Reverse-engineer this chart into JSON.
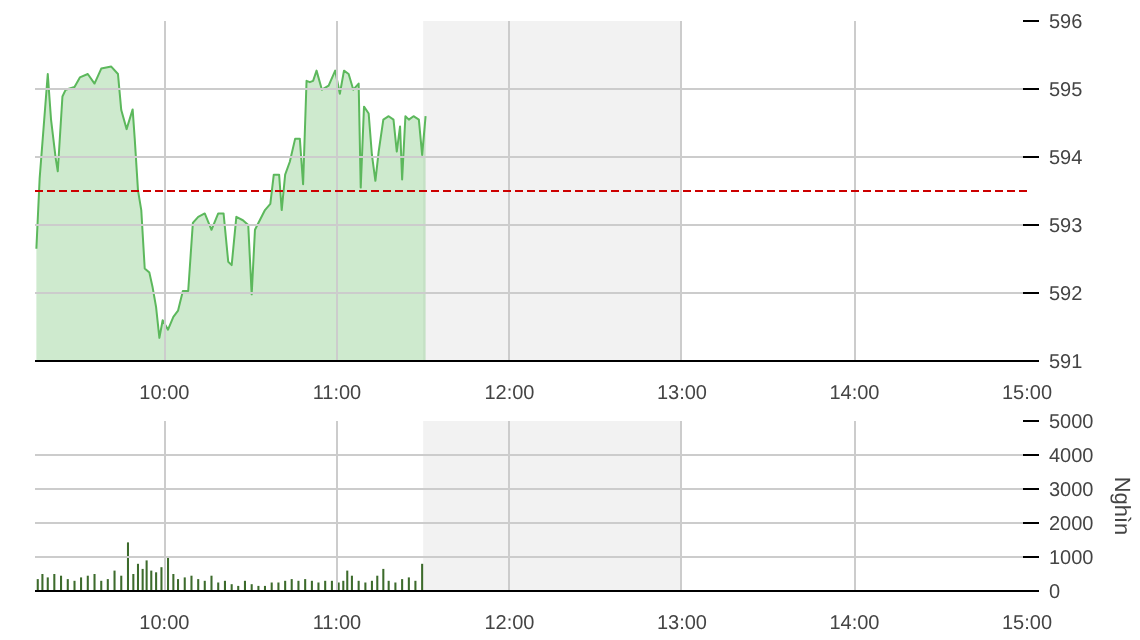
{
  "chart_data": [
    {
      "type": "area",
      "xlim": [
        9.25,
        15
      ],
      "ylim": [
        591,
        596
      ],
      "yticks": [
        591,
        592,
        593,
        594,
        595,
        596
      ],
      "xticks": [
        {
          "value": 10,
          "label": "10:00"
        },
        {
          "value": 11,
          "label": "11:00"
        },
        {
          "value": 12,
          "label": "12:00"
        },
        {
          "value": 13,
          "label": "13:00"
        },
        {
          "value": 14,
          "label": "14:00"
        },
        {
          "value": 15,
          "label": "15:00"
        }
      ],
      "grid": true,
      "bands": [
        {
          "axis": "x",
          "from": 11.5,
          "to": 13,
          "color": "#f2f2f2"
        }
      ],
      "ref_lines": [
        {
          "axis": "y",
          "value": 593.5,
          "color": "#cc0000",
          "line_style": "dashed"
        }
      ],
      "series": [
        {
          "color": "#5cb85c",
          "x": [
            9.258,
            9.277,
            9.324,
            9.343,
            9.37,
            9.382,
            9.409,
            9.428,
            9.479,
            9.51,
            9.556,
            9.595,
            9.634,
            9.692,
            9.731,
            9.75,
            9.781,
            9.816,
            9.828,
            9.847,
            9.866,
            9.886,
            9.913,
            9.932,
            9.952,
            9.971,
            9.99,
            10.021,
            10.052,
            10.079,
            10.107,
            10.138,
            10.165,
            10.196,
            10.234,
            10.273,
            10.312,
            10.343,
            10.37,
            10.39,
            10.417,
            10.455,
            10.486,
            10.506,
            10.525,
            10.583,
            10.614,
            10.634,
            10.665,
            10.68,
            10.7,
            10.727,
            10.758,
            10.785,
            10.804,
            10.824,
            10.843,
            10.862,
            10.882,
            10.913,
            10.952,
            10.99,
            11.017,
            11.041,
            11.068,
            11.095,
            11.126,
            11.138,
            11.157,
            11.184,
            11.203,
            11.223,
            11.242,
            11.269,
            11.3,
            11.328,
            11.347,
            11.366,
            11.378,
            11.397,
            11.417,
            11.444,
            11.475,
            11.494,
            11.514
          ],
          "values": [
            592.65,
            593.69,
            595.22,
            594.55,
            593.98,
            593.79,
            594.89,
            594.99,
            595.03,
            595.17,
            595.22,
            595.08,
            595.3,
            595.33,
            595.22,
            594.69,
            594.41,
            594.7,
            594.27,
            593.51,
            593.22,
            592.36,
            592.3,
            592.08,
            591.79,
            591.34,
            591.6,
            591.46,
            591.65,
            591.74,
            592.03,
            592.03,
            593.03,
            593.12,
            593.17,
            592.93,
            593.17,
            593.17,
            592.46,
            592.41,
            593.12,
            593.07,
            593.0,
            591.98,
            592.93,
            593.22,
            593.31,
            593.74,
            593.74,
            593.22,
            593.74,
            593.93,
            594.27,
            594.27,
            593.6,
            595.12,
            595.1,
            595.12,
            595.27,
            594.99,
            595.05,
            595.27,
            594.93,
            595.27,
            595.22,
            594.99,
            595.08,
            593.55,
            594.74,
            594.64,
            594.03,
            593.65,
            594.08,
            594.55,
            594.6,
            594.55,
            594.08,
            594.45,
            593.67,
            594.6,
            594.55,
            594.6,
            594.55,
            594.03,
            594.6
          ]
        }
      ]
    },
    {
      "type": "bar",
      "xlim": [
        9.25,
        15
      ],
      "ylim": [
        0,
        5000
      ],
      "yticks": [
        0,
        1000,
        2000,
        3000,
        4000,
        5000
      ],
      "ylabel": "Nghìn",
      "xticks": [
        {
          "value": 10,
          "label": "10:00"
        },
        {
          "value": 11,
          "label": "11:00"
        },
        {
          "value": 12,
          "label": "12:00"
        },
        {
          "value": 13,
          "label": "13:00"
        },
        {
          "value": 14,
          "label": "14:00"
        },
        {
          "value": 15,
          "label": "15:00"
        }
      ],
      "grid": true,
      "bands": [
        {
          "axis": "x",
          "from": 11.5,
          "to": 13,
          "color": "#f2f2f2"
        }
      ],
      "series": [
        {
          "color": "#3d6b2c",
          "x": [
            9.266,
            9.293,
            9.324,
            9.362,
            9.401,
            9.44,
            9.479,
            9.517,
            9.556,
            9.595,
            9.634,
            9.672,
            9.711,
            9.75,
            9.789,
            9.82,
            9.847,
            9.874,
            9.897,
            9.924,
            9.952,
            9.983,
            10.021,
            10.052,
            10.079,
            10.118,
            10.157,
            10.196,
            10.234,
            10.273,
            10.312,
            10.351,
            10.39,
            10.428,
            10.467,
            10.506,
            10.545,
            10.583,
            10.622,
            10.661,
            10.7,
            10.738,
            10.777,
            10.816,
            10.855,
            10.893,
            10.932,
            10.971,
            11.01,
            11.037,
            11.06,
            11.087,
            11.126,
            11.165,
            11.203,
            11.234,
            11.269,
            11.3,
            11.339,
            11.378,
            11.417,
            11.455,
            11.494
          ],
          "values": [
            350,
            500,
            400,
            500,
            450,
            350,
            300,
            400,
            450,
            500,
            300,
            350,
            600,
            450,
            1430,
            500,
            800,
            650,
            900,
            600,
            550,
            700,
            1000,
            500,
            350,
            400,
            450,
            350,
            300,
            450,
            250,
            300,
            200,
            150,
            300,
            200,
            150,
            150,
            250,
            250,
            300,
            350,
            300,
            350,
            300,
            250,
            300,
            300,
            250,
            300,
            600,
            450,
            300,
            250,
            300,
            450,
            650,
            300,
            250,
            350,
            400,
            300,
            800
          ]
        }
      ]
    }
  ]
}
